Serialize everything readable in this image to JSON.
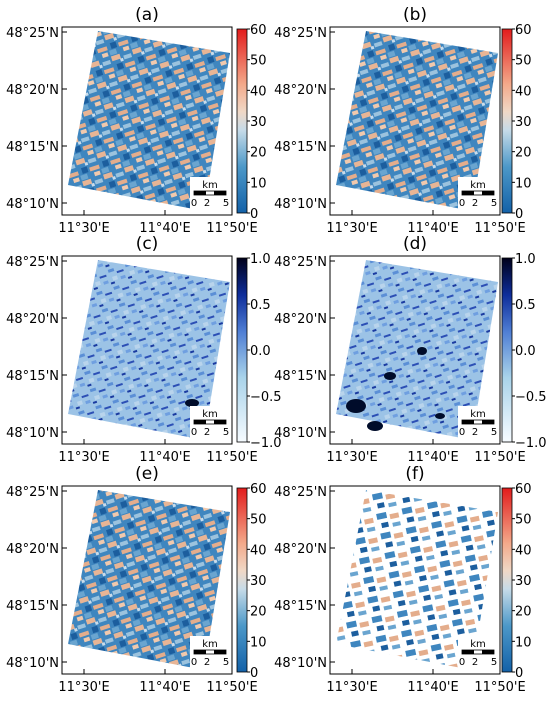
{
  "figure": {
    "panels": [
      {
        "label": "(a)",
        "map_style": "angle",
        "lat_ticks": [
          "48°25'N",
          "48°20'N",
          "48°15'N",
          "48°10'N"
        ],
        "lon_ticks": [
          "11°30'E",
          "11°40'E",
          "11°50'E"
        ],
        "colorbar": {
          "ticks": [
            "60",
            "50",
            "40",
            "30",
            "20",
            "10",
            "0"
          ],
          "colormap": "blue-white-red"
        },
        "scalebar": {
          "unit": "km",
          "ticks": [
            "0",
            "2",
            "5"
          ]
        }
      },
      {
        "label": "(b)",
        "map_style": "angle",
        "lat_ticks": [
          "48°25'N",
          "48°20'N",
          "48°15'N",
          "48°10'N"
        ],
        "lon_ticks": [
          "11°30'E",
          "11°40'E",
          "11°50'E"
        ],
        "colorbar": {
          "ticks": [
            "60",
            "50",
            "40",
            "30",
            "20",
            "10",
            "0"
          ],
          "colormap": "blue-white-red"
        },
        "scalebar": {
          "unit": "km",
          "ticks": [
            "0",
            "2",
            "5"
          ]
        }
      },
      {
        "label": "(c)",
        "map_style": "coherence",
        "lat_ticks": [
          "48°25'N",
          "48°20'N",
          "48°15'N",
          "48°10'N"
        ],
        "lon_ticks": [
          "11°30'E",
          "11°40'E",
          "11°50'E"
        ],
        "colorbar": {
          "ticks": [
            "1.0",
            "0.5",
            "0.0",
            "−0.5",
            "−1.0"
          ],
          "colormap": "blue-white"
        },
        "scalebar": {
          "unit": "km",
          "ticks": [
            "0",
            "2",
            "5"
          ]
        }
      },
      {
        "label": "(d)",
        "map_style": "coherence",
        "lat_ticks": [
          "48°25'N",
          "48°20'N",
          "48°15'N",
          "48°10'N"
        ],
        "lon_ticks": [
          "11°30'E",
          "11°40'E",
          "11°50'E"
        ],
        "colorbar": {
          "ticks": [
            "1.0",
            "0.5",
            "0.0",
            "−0.5",
            "−1.0"
          ],
          "colormap": "blue-white"
        },
        "scalebar": {
          "unit": "km",
          "ticks": [
            "0",
            "2",
            "5"
          ]
        }
      },
      {
        "label": "(e)",
        "map_style": "angle",
        "lat_ticks": [
          "48°25'N",
          "48°20'N",
          "48°15'N",
          "48°10'N"
        ],
        "lon_ticks": [
          "11°30'E",
          "11°40'E",
          "11°50'E"
        ],
        "colorbar": {
          "ticks": [
            "60",
            "50",
            "40",
            "30",
            "20",
            "10",
            "0"
          ],
          "colormap": "blue-white-red"
        },
        "scalebar": {
          "unit": "km",
          "ticks": [
            "0",
            "2",
            "5"
          ]
        }
      },
      {
        "label": "(f)",
        "map_style": "angle-masked",
        "lat_ticks": [
          "48°25'N",
          "48°20'N",
          "48°15'N",
          "48°10'N"
        ],
        "lon_ticks": [
          "11°30'E",
          "11°40'E",
          "11°50'E"
        ],
        "colorbar": {
          "ticks": [
            "60",
            "50",
            "40",
            "30",
            "20",
            "10",
            "0"
          ],
          "colormap": "blue-white-red"
        },
        "scalebar": {
          "unit": "km",
          "ticks": [
            "0",
            "2",
            "5"
          ]
        }
      }
    ]
  },
  "colors": {
    "angle_low": "#1f6fb3",
    "angle_mid": "#dfe9ef",
    "angle_high": "#e84b2f",
    "angle_peach": "#e9b897",
    "coh_light": "#b8d3ea",
    "coh_dark": "#0a1f6b",
    "axis": "#000000"
  }
}
